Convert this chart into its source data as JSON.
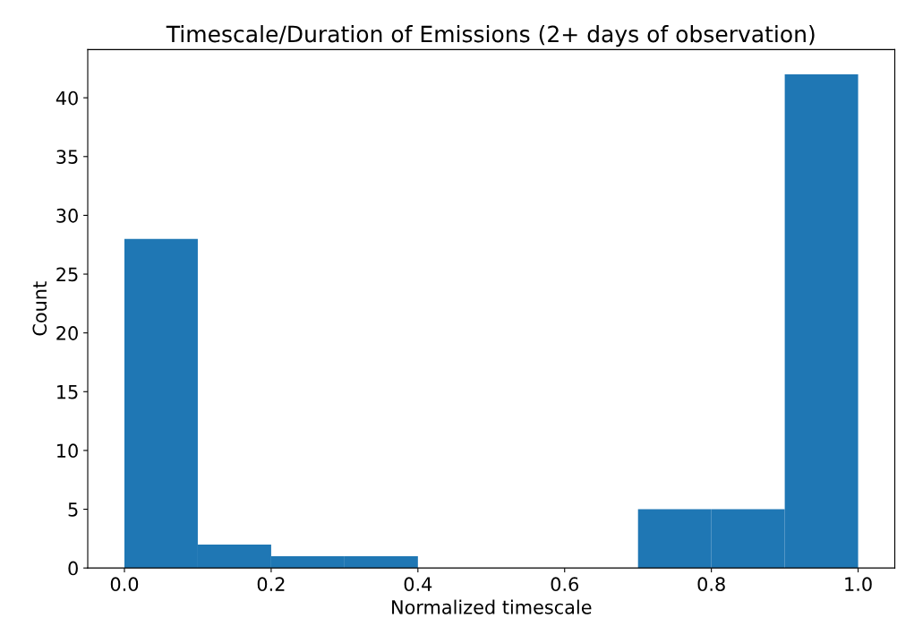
{
  "chart_data": {
    "type": "histogram",
    "title": "Timescale/Duration of Emissions (2+ days of observation)",
    "xlabel": "Normalized timescale",
    "ylabel": "Count",
    "bins": [
      0.0,
      0.1,
      0.2,
      0.3,
      0.4,
      0.5,
      0.6,
      0.7,
      0.8,
      0.9,
      1.0
    ],
    "values": [
      28,
      2,
      1,
      1,
      0,
      0,
      0,
      5,
      5,
      42
    ],
    "color": "#1f77b4",
    "xlim": [
      -0.05,
      1.05
    ],
    "xticks": [
      {
        "value": 0,
        "label": "0.0"
      },
      0.2,
      0.4,
      0.6,
      0.8,
      {
        "value": 1,
        "label": "1.0"
      }
    ],
    "ylim": [
      0,
      44.1
    ],
    "yticks": [
      0,
      5,
      10,
      15,
      20,
      25,
      30,
      35,
      40
    ],
    "grid": false
  }
}
